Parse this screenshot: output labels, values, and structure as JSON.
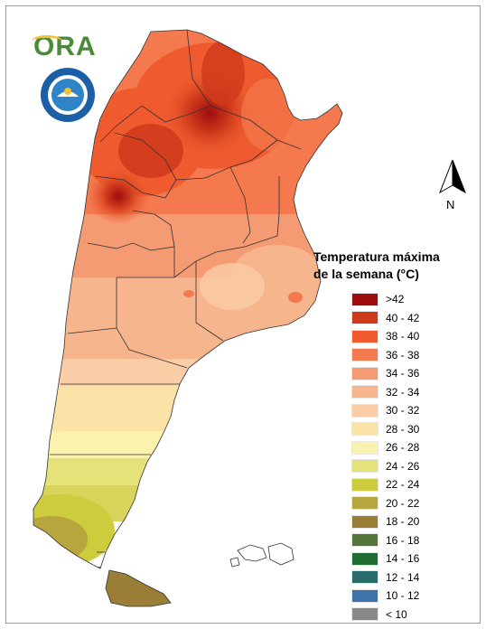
{
  "logos": {
    "ora": "ORA",
    "smn": "smn-seal"
  },
  "north": {
    "label": "N",
    "icon": "north-arrow-icon"
  },
  "legend": {
    "title_line1": "Temperatura máxima",
    "title_line2": "de la semana (°C)",
    "items": [
      {
        "label": ">42",
        "color": "#9c0d0d"
      },
      {
        "label": "40 - 42",
        "color": "#cf3a1c"
      },
      {
        "label": "38 - 40",
        "color": "#ef5b2e"
      },
      {
        "label": "36 - 38",
        "color": "#f4794e"
      },
      {
        "label": "34 - 36",
        "color": "#f59b74"
      },
      {
        "label": "32 - 34",
        "color": "#f7b58e"
      },
      {
        "label": "30 - 32",
        "color": "#f9cda6"
      },
      {
        "label": "28 - 30",
        "color": "#fbe3a8"
      },
      {
        "label": "26 - 28",
        "color": "#fbf3ad"
      },
      {
        "label": "24 - 26",
        "color": "#e6e27a"
      },
      {
        "label": "22 - 24",
        "color": "#cccc3d"
      },
      {
        "label": "20 - 22",
        "color": "#b7a63d"
      },
      {
        "label": "18 - 20",
        "color": "#9a7e35"
      },
      {
        "label": "16 - 18",
        "color": "#54763a"
      },
      {
        "label": "14 - 16",
        "color": "#1e6c31"
      },
      {
        "label": "12 - 14",
        "color": "#2a6b6c"
      },
      {
        "label": "10 - 12",
        "color": "#3e73aa"
      },
      {
        "label": "< 10",
        "color": "#888888"
      }
    ]
  }
}
